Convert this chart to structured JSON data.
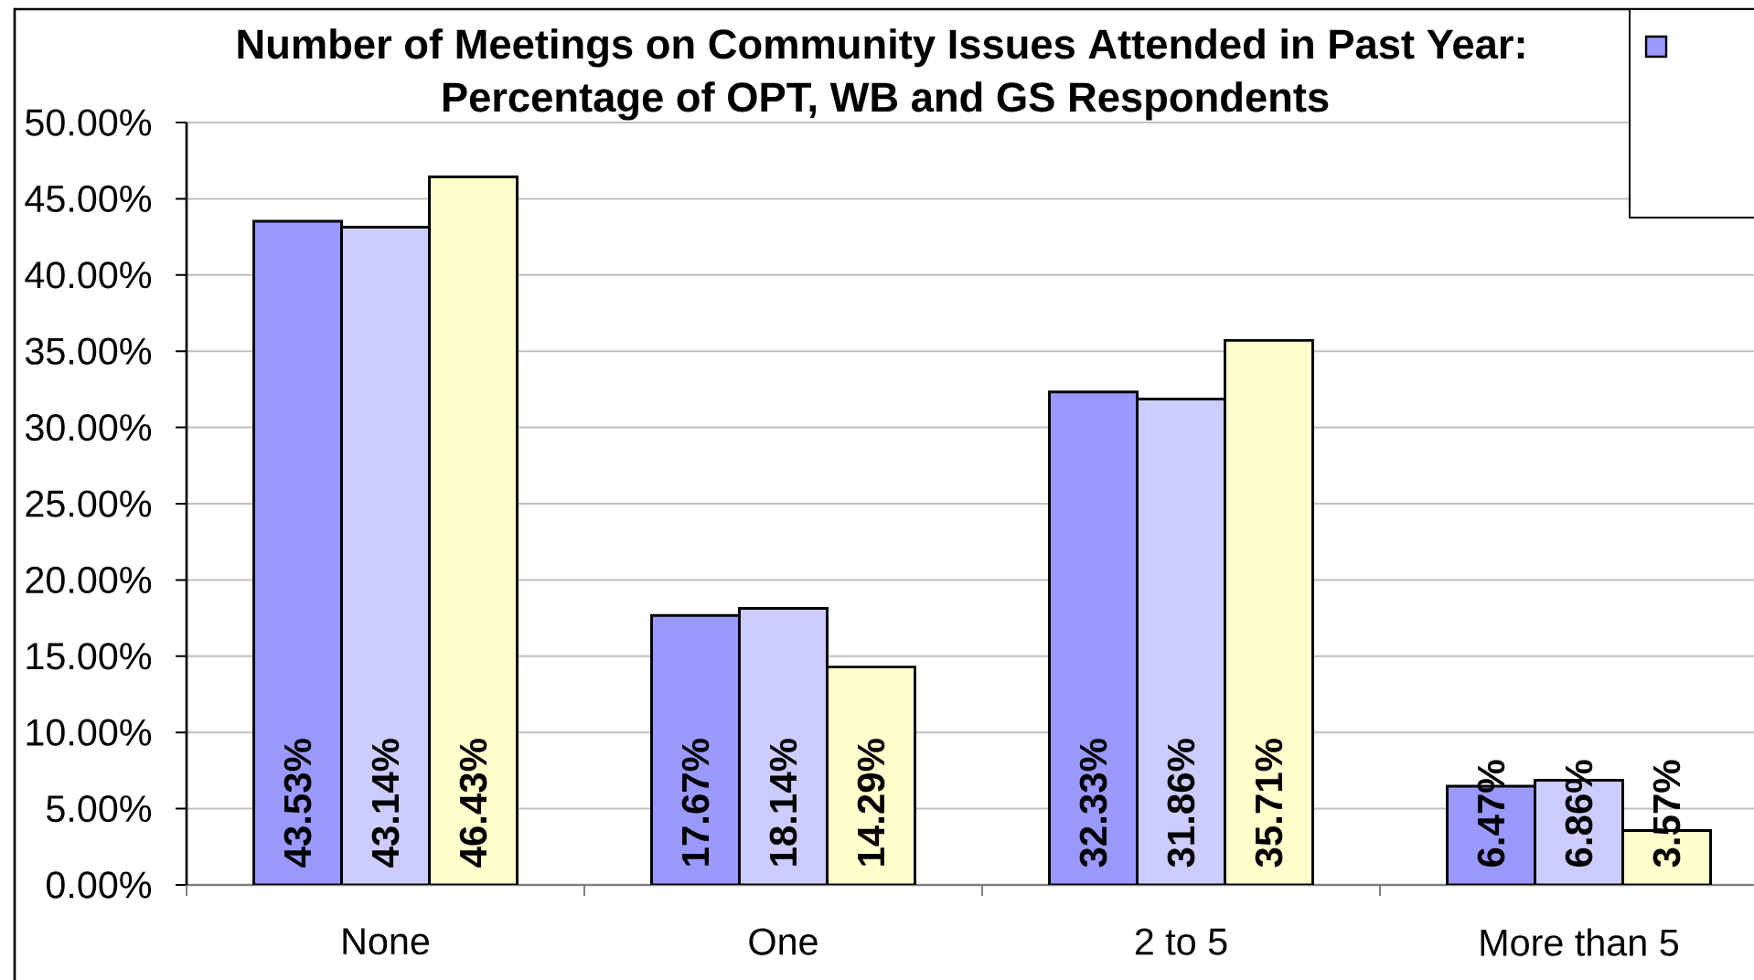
{
  "chart_data": {
    "type": "bar",
    "title": "Number of Meetings on Community Issues Attended in Past Year:",
    "subtitle": "Percentage of OPT, WB and GS Respondents",
    "categories": [
      "None",
      "One",
      "2 to 5",
      "More than 5"
    ],
    "series": [
      {
        "color": "#9999ff",
        "values": [
          43.53,
          17.67,
          32.33,
          6.47
        ],
        "value_labels": [
          "43.53%",
          "17.67%",
          "32.33%",
          "6.47%"
        ]
      },
      {
        "color": "#ccccff",
        "values": [
          43.14,
          18.14,
          31.86,
          6.86
        ],
        "value_labels": [
          "43.14%",
          "18.14%",
          "31.86%",
          "6.86%"
        ]
      },
      {
        "color": "#ffffcc",
        "values": [
          46.43,
          14.29,
          35.71,
          3.57
        ],
        "value_labels": [
          "46.43%",
          "14.29%",
          "35.71%",
          "3.57%"
        ]
      }
    ],
    "ylim": [
      0,
      50
    ],
    "yticks": [
      {
        "value": 0,
        "label": "0.00%"
      },
      {
        "value": 5,
        "label": "5.00%"
      },
      {
        "value": 10,
        "label": "10.00%"
      },
      {
        "value": 15,
        "label": "15.00%"
      },
      {
        "value": 20,
        "label": "20.00%"
      },
      {
        "value": 25,
        "label": "25.00%"
      },
      {
        "value": 30,
        "label": "30.00%"
      },
      {
        "value": 35,
        "label": "35.00%"
      },
      {
        "value": 40,
        "label": "40.00%"
      },
      {
        "value": 45,
        "label": "45.00%"
      },
      {
        "value": 50,
        "label": "50.00%"
      }
    ],
    "grid": "y"
  }
}
